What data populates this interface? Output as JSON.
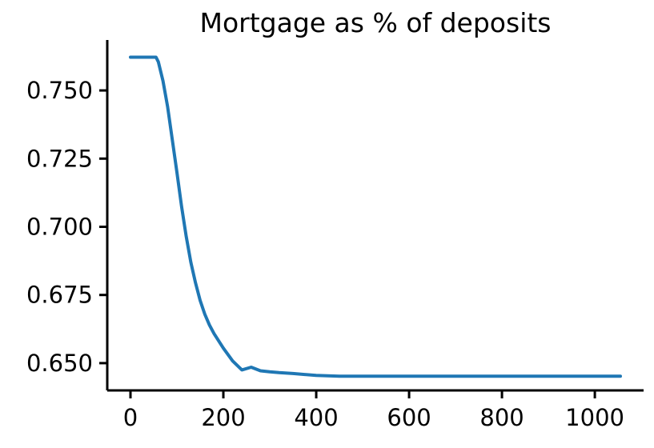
{
  "chart_data": {
    "type": "line",
    "title": "Mortgage as % of deposits",
    "xlabel": "",
    "ylabel": "",
    "xlim": [
      -50,
      1105
    ],
    "ylim": [
      0.64,
      0.7685
    ],
    "xticks": [
      0,
      200,
      400,
      600,
      800,
      1000
    ],
    "xtick_labels": [
      "0",
      "200",
      "400",
      "600",
      "800",
      "1000"
    ],
    "yticks": [
      0.65,
      0.675,
      0.7,
      0.725,
      0.75
    ],
    "ytick_labels": [
      "0.650",
      "0.675",
      "0.700",
      "0.725",
      "0.750"
    ],
    "grid": false,
    "series": [
      {
        "color": "#1f77b4",
        "x": [
          0,
          20,
          40,
          55,
          60,
          70,
          80,
          90,
          100,
          110,
          120,
          130,
          140,
          150,
          160,
          170,
          180,
          200,
          220,
          240,
          260,
          280,
          300,
          320,
          350,
          400,
          450,
          500,
          600,
          700,
          800,
          900,
          1000,
          1055
        ],
        "y": [
          0.7622,
          0.7622,
          0.7622,
          0.7622,
          0.7605,
          0.7535,
          0.744,
          0.732,
          0.72,
          0.7075,
          0.6965,
          0.687,
          0.6795,
          0.673,
          0.668,
          0.664,
          0.6608,
          0.6555,
          0.6508,
          0.6475,
          0.6485,
          0.6472,
          0.6468,
          0.6465,
          0.6462,
          0.6455,
          0.6452,
          0.6452,
          0.6452,
          0.6452,
          0.6452,
          0.6452,
          0.6452,
          0.6452
        ]
      }
    ]
  }
}
